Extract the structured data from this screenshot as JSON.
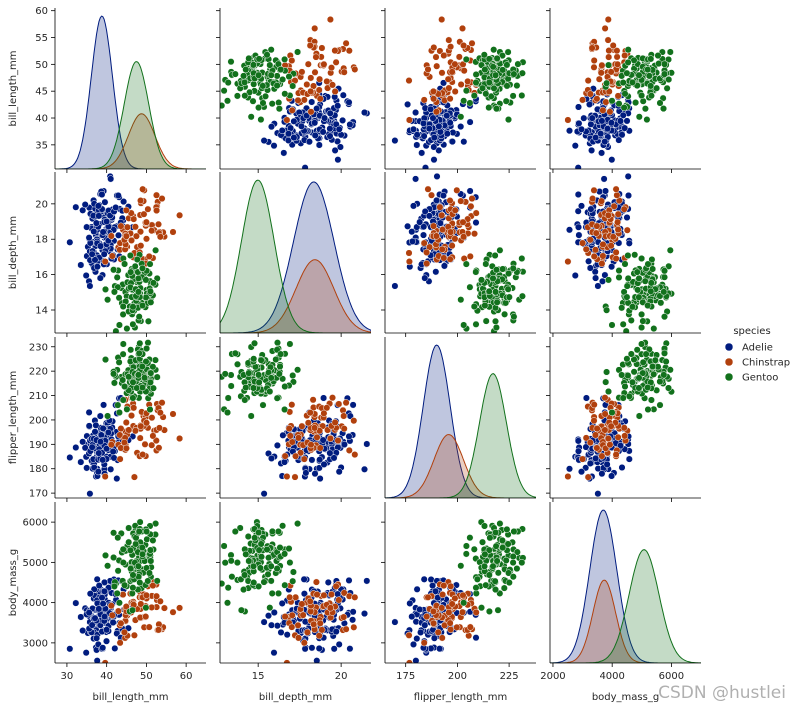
{
  "chart_data": {
    "type": "scatter",
    "subtype": "pairplot",
    "variables": [
      "bill_length_mm",
      "bill_depth_mm",
      "flipper_length_mm",
      "body_mass_g"
    ],
    "hue": "species",
    "legend": {
      "title": "species",
      "placement": "right"
    },
    "diagonal": "kde",
    "axes": {
      "bill_length_mm": {
        "lim": [
          27,
          65
        ],
        "ticks": [
          30,
          40,
          50,
          60
        ],
        "yticks": [
          35,
          40,
          45,
          50,
          55,
          60
        ],
        "ylim": [
          30.5,
          60.5
        ]
      },
      "bill_depth_mm": {
        "lim": [
          12.7,
          21.8
        ],
        "ticks": [
          15,
          20
        ],
        "yticks": [
          14,
          16,
          18,
          20
        ],
        "ylim": [
          12.7,
          21.8
        ]
      },
      "flipper_length_mm": {
        "lim": [
          165,
          238
        ],
        "ticks": [
          175,
          200,
          225
        ],
        "yticks": [
          170,
          180,
          190,
          200,
          210,
          220,
          230
        ],
        "ylim": [
          168,
          234
        ]
      },
      "body_mass_g": {
        "lim": [
          1900,
          7000
        ],
        "ticks": [
          2000,
          4000,
          6000
        ],
        "yticks": [
          3000,
          4000,
          5000,
          6000
        ],
        "ylim": [
          2500,
          6500
        ]
      }
    },
    "series": [
      {
        "name": "Adelie",
        "color": "#001c7f",
        "mean": {
          "bill_length_mm": 38.8,
          "bill_depth_mm": 18.35,
          "flipper_length_mm": 190,
          "body_mass_g": 3700
        },
        "sd": {
          "bill_length_mm": 2.66,
          "bill_depth_mm": 1.22,
          "flipper_length_mm": 6.5,
          "body_mass_g": 459
        }
      },
      {
        "name": "Chinstrap",
        "color": "#b1400d",
        "mean": {
          "bill_length_mm": 48.8,
          "bill_depth_mm": 18.42,
          "flipper_length_mm": 195.8,
          "body_mass_g": 3733
        },
        "sd": {
          "bill_length_mm": 3.34,
          "bill_depth_mm": 1.14,
          "flipper_length_mm": 7.1,
          "body_mass_g": 384
        }
      },
      {
        "name": "Gentoo",
        "color": "#12711c",
        "mean": {
          "bill_length_mm": 47.5,
          "bill_depth_mm": 14.98,
          "flipper_length_mm": 217.2,
          "body_mass_g": 5076
        },
        "sd": {
          "bill_length_mm": 3.08,
          "bill_depth_mm": 0.98,
          "flipper_length_mm": 6.5,
          "body_mass_g": 504
        }
      }
    ]
  },
  "watermark": "CSDN @hustlei"
}
